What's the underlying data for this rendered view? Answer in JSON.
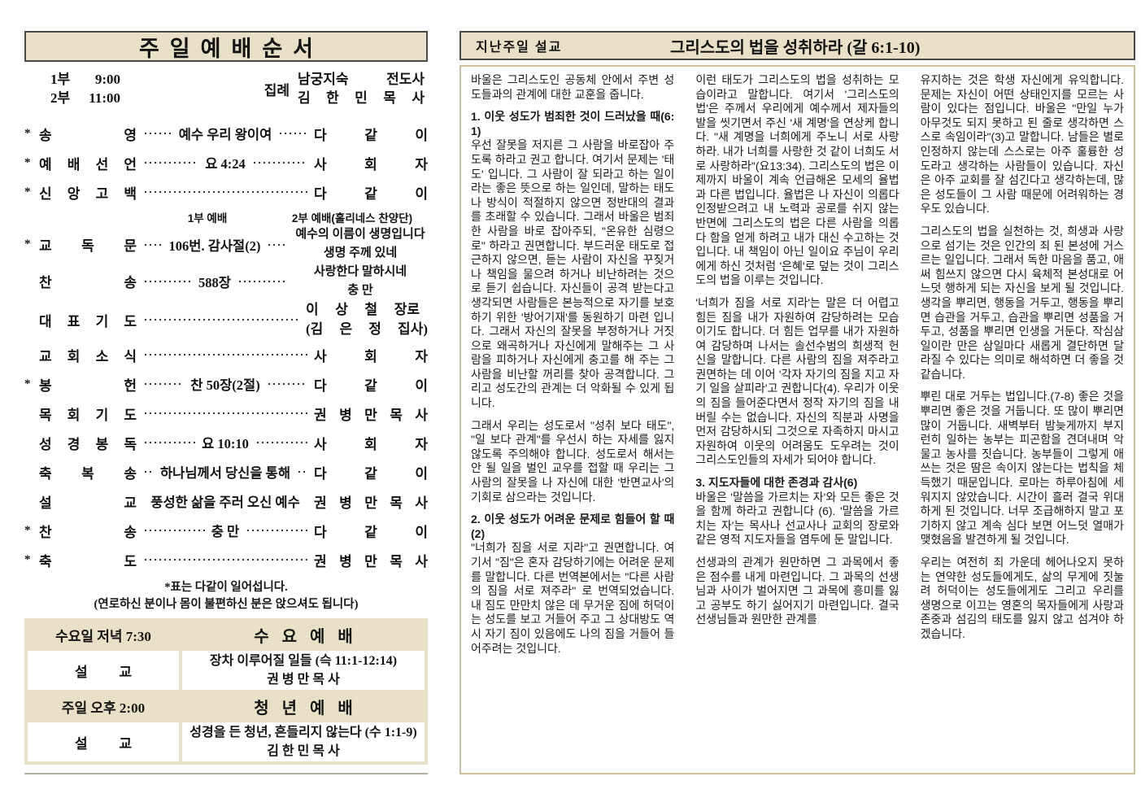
{
  "colors": {
    "beige": "#e8e1c8",
    "dark_border": "#4a4a42",
    "tan_border": "#cbc19c",
    "text": "#141414"
  },
  "left": {
    "title": "주일예배순서",
    "times": [
      {
        "part": "1부",
        "time": "9:00"
      },
      {
        "part": "2부",
        "time": "11:00"
      }
    ],
    "officiant": {
      "label": "집례",
      "names": [
        "남궁지숙 전도사",
        "김 한 민 목 사"
      ]
    },
    "subheaders": {
      "first": "1부 예배",
      "second": "2부 예배(홀리네스 찬양단)"
    },
    "praise": [
      "예수의 이름이 생명입니다",
      "생명 주께 있네",
      "사랑한다 말하시네",
      "충 만"
    ],
    "order": [
      {
        "star": "*",
        "label": "송 영",
        "center": "예수 우리 왕이여",
        "right": "다 같 이"
      },
      {
        "star": "*",
        "label": "예 배 선 언",
        "center": "요 4:24",
        "right": "사 회 자"
      },
      {
        "star": "*",
        "label": "신 앙 고 백",
        "center": "",
        "right": "다 같 이"
      },
      {
        "star": "*",
        "label": "교 독 문",
        "center": "106번. 감사절(2)",
        "right": ""
      },
      {
        "star": "",
        "label": "찬 송",
        "center": "588장",
        "right": ""
      },
      {
        "star": "",
        "label": "대 표 기 도",
        "center": "",
        "right": "이 상 철 장로",
        "right2": "(김 은 정 집사)"
      },
      {
        "star": "",
        "label": "교 회 소 식",
        "center": "",
        "right": "사 회 자"
      },
      {
        "star": "*",
        "label": "봉 헌",
        "center": "찬 50장(2절)",
        "right": "다 같 이"
      },
      {
        "star": "",
        "label": "목 회 기 도",
        "center": "",
        "right": "권 병 만 목 사"
      },
      {
        "star": "",
        "label": "성 경 봉 독",
        "center": "요 10:10",
        "right": "사 회 자"
      },
      {
        "star": "",
        "label": "축 복 송",
        "center": "하나님께서 당신을 통해",
        "right": "다 같 이"
      },
      {
        "star": "",
        "label": "설 교",
        "center": "풍성한 삶을 주러 오신 예수",
        "right": "권 병 만 목 사"
      },
      {
        "star": "*",
        "label": "찬 송",
        "center": "충 만",
        "right": "다 같 이"
      },
      {
        "star": "*",
        "label": "축 도",
        "center": "",
        "right": "권 병 만 목 사"
      }
    ],
    "notes": [
      "*표는 다같이 일어섭니다.",
      "(연로하신 분이나 몸이 불편하신 분은 앉으셔도 됩니다)"
    ],
    "schedule": {
      "rows": [
        {
          "type": "header",
          "col1": "수요일 저녁 7:30",
          "col2": "수요예배"
        },
        {
          "type": "content",
          "col1": "설 교",
          "line1": "장차 이루어질 일들 (슥 11:1-12:14)",
          "line2": "권 병 만 목 사"
        },
        {
          "type": "header",
          "col1": "주일 오후 2:00",
          "col2": "청년예배"
        },
        {
          "type": "content",
          "col1": "설 교",
          "line1": "성경을 든 청년, 흔들리지 않는다 (수 1:1-9)",
          "line2": "김 한 민 목 사"
        }
      ]
    }
  },
  "right": {
    "header": {
      "label": "지난주일 설교",
      "title": "그리스도의 법을 성취하라 (갈 6:1-10)"
    },
    "columns": [
      {
        "blocks": [
          {
            "type": "p",
            "text": "바울은 그리스도인 공동체 안에서 주변 성도들과의 관계에 대한 교훈을 줍니다."
          },
          {
            "type": "h",
            "text": "1. 이웃 성도가 범죄한 것이 드러났을 때(6:1)"
          },
          {
            "type": "p",
            "text": "우선 잘못을 저지른 그 사람을 바로잡아 주도록 하라고 권고 합니다. 여기서 문제는 '태도' 입니다. 그 사람이 잘 되라고 하는 일이라는 좋은 뜻으로 하는 일인데, 말하는 태도나 방식이 적절하지 않으면 정반대의 결과를 초래할 수 있습니다. 그래서 바울은 범죄한 사람을 바로 잡아주되, \"온유한 심령으로\" 하라고 권면합니다. 부드러운 태도로 접근하지 않으면, 듣는 사람이 자신을 꾸짖거나 책임을 물으려 하거나 비난하려는 것으로 듣기 쉽습니다. 자신들이 공격 받는다고 생각되면 사람들은 본능적으로 자기를 보호하기 위한 '방어기재'를 동원하기 마련 입니다. 그래서 자신의 잘못을 부정하거나 거짓으로 왜곡하거나 자신에게 말해주는 그 사람을 피하거나 자신에게 충고를 해 주는 그 사람을 비난할 꺼리를 찾아 공격합니다. 그리고 성도간의 관계는 더 악화될 수 있게 됩니다."
          },
          {
            "type": "p",
            "text": "그래서 우리는 성도로서 \"성취 보다 태도\", \"일 보다 관계\"를 우선시 하는 자세를 잃지 않도록 주의해야 합니다. 성도로서 해서는 안 될 일을 벌인 교우를 접할 때 우리는 그 사람의 잘못을 나 자신에 대한 '반면교사'의 기회로 삼으라는 것입니다."
          },
          {
            "type": "h",
            "text": "2. 이웃 성도가 어려운 문제로 힘들어 할 때(2)"
          },
          {
            "type": "p",
            "text": "\"너희가 짐을 서로 지라\"고 권면합니다. 여기서 \"짐\"은 혼자 감당하기에는 어려운 문제를 말합니다. 다른 번역본에서는 \"다른 사람의 짐을 서로 져주라\" 로 번역되었습니다. 내 짐도 만만치 않은 데 무거운 짐에 허덕이는 성도를 보고 거들어 주고 그 상대방도 역시 자기 짐이 있음에도 나의 짐을 거들어 들어주려는 것입니다."
          }
        ]
      },
      {
        "blocks": [
          {
            "type": "p",
            "text": "이런 태도가 그리스도의 법을 성취하는 모습이라고 말합니다. 여기서 '그리스도의 법'은 주께서 우리에게 예수께서 제자들의 발을 씻기면서 주신 '새 계명'을 연상케 합니다. \"새 계명을 너희에게 주노니 서로 사랑하라. 내가 너희를 사랑한 것 같이 너희도 서로 사랑하라\"(요13:34). 그리스도의 법은 이제까지 바울이 계속 언급해온 모세의 율법과 다른 법입니다. 율법은 나 자신이 의롭다 인정받으려고 내 노력과 공로를 쉬지 않는 반면에 그리스도의 법은 다른 사람을 의롭다 함을 얻게 하려고 내가 대신 수고하는 것입니다. 내 책임이 아닌 일이요 주님이 우리에게 하신 것처럼 '은혜'로 덮는 것이 그리스도의 법을 이루는 것입니다."
          },
          {
            "type": "p",
            "text": "'너희가 짐을 서로 지라'는 말은 더 어렵고 힘든 짐을 내가 자원하여 감당하려는 모습이기도 합니다. 더 힘든 업무를 내가 자원하여 감당하며 나서는 솔선수범의 희생적 헌신을 말합니다. 다른 사람의 짐을 져주라고 권면하는 데 이어 '각자 자기의 짐을 지고 자기 일을 살피라'고 권합니다(4). 우리가 이웃의 짐을 들어준다면서 정작 자기의 짐을 내버릴 수는 없습니다. 자신의 직분과 사명을 먼저 감당하시되 그것으로 자족하지 마시고 자원하여 이웃의 어려움도 도우려는 것이 그리스도인들의 자세가 되어야 합니다."
          },
          {
            "type": "h",
            "text": "3. 지도자들에 대한 존경과 감사(6)"
          },
          {
            "type": "p",
            "text": "바울은 '말씀을 가르치는 자'와 모든 좋은 것을 함께 하라고 권합니다 (6). '말씀을 가르치는 자'는 목사나 선교사나 교회의 장로와 같은 영적 지도자들을 염두에 둔 말입니다."
          },
          {
            "type": "p",
            "text": "선생과의 관계가 원만하면 그 과목에서 좋은 점수를 내게 마련입니다. 그 과목의 선생님과 사이가 벌어지면 그 과목에 흥미를 잃고 공부도 하기 싫어지기 마련입니다. 결국 선생님들과 원만한 관계를"
          }
        ]
      },
      {
        "blocks": [
          {
            "type": "p",
            "text": "유지하는 것은 학생 자신에게 유익합니다. 문제는 자신이 어떤 상태인지를 모르는 사람이 있다는 점입니다. 바울은 \"만일 누가 아무것도 되지 못하고 된 줄로 생각하면 스스로 속임이라\"(3)고 말합니다. 남들은 별로 인정하지 않는데 스스로는 아주 훌륭한 성도라고 생각하는 사람들이 있습니다. 자신은 아주 교회를 잘 섬긴다고 생각하는데, 많은 성도들이 그 사람 때문에 어려워하는 경우도 있습니다."
          },
          {
            "type": "p",
            "text": "그리스도의 법을 실천하는 것, 희생과 사랑으로 섬기는 것은 인간의 죄 된 본성에 거스르는 일입니다. 그래서 독한 마음을 품고, 애써 힘쓰지 않으면 다시 육체적 본성대로 어느덧 행하게 되는 자신을 보게 될 것입니다. 생각을 뿌리면, 행동을 거두고, 행동을 뿌리면 습관을 거두고, 습관을 뿌리면 성품을 거두고, 성품을 뿌리면 인생을 거둔다. 작심삼일이란 만은 삼일마다 새롭게 결단하면 달라질 수 있다는 의미로 해석하면 더 좋을 것 같습니다."
          },
          {
            "type": "p",
            "text": "뿌린 대로 거두는 법입니다.(7-8) 좋은 것을 뿌리면 좋은 것을 거둡니다. 또 많이 뿌리면 많이 거둡니다. 새벽부터 밤늦게까지 부지런히 일하는 농부는 피곤함을 견뎌내며 악물고 농사를 짓습니다. 농부들이 그렇게 애쓰는 것은 땀은 속이지 않는다는 법칙을 체득했기 때문입니다. 로마는 하루아침에 세워지지 않았습니다. 시간이 흘러 결국 위대하게 된 것입니다. 너무 조급해하지 말고 포기하지 않고 계속 심다 보면 어느덧 열매가 맺혔음을 발견하게 될 것입니다."
          },
          {
            "type": "p",
            "text": "우리는 여전히 죄 가운데 헤어나오지 못하는 연약한 성도들에게도, 삶의 무게에 짓눌려 허덕이는 성도들에게도 그리고 우리를 생명으로 이끄는 영혼의 목자들에게 사랑과 존중과 섬김의 태도를 잃지 않고 섬겨야 하겠습니다."
          }
        ]
      }
    ]
  }
}
